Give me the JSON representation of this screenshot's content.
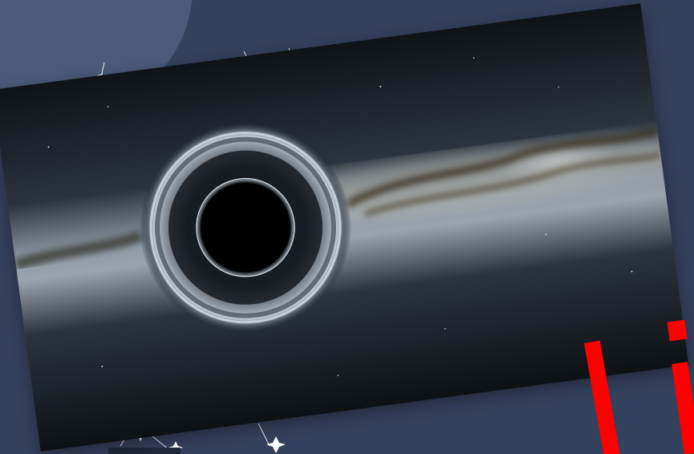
{
  "image": {
    "subject": "black-hole-over-milky-way",
    "colors": {
      "background": "#34415c",
      "circle": "#4a5a78",
      "space_dark": "#0e1116",
      "glow": "#c9d3de",
      "accent": "#ff0000"
    }
  }
}
